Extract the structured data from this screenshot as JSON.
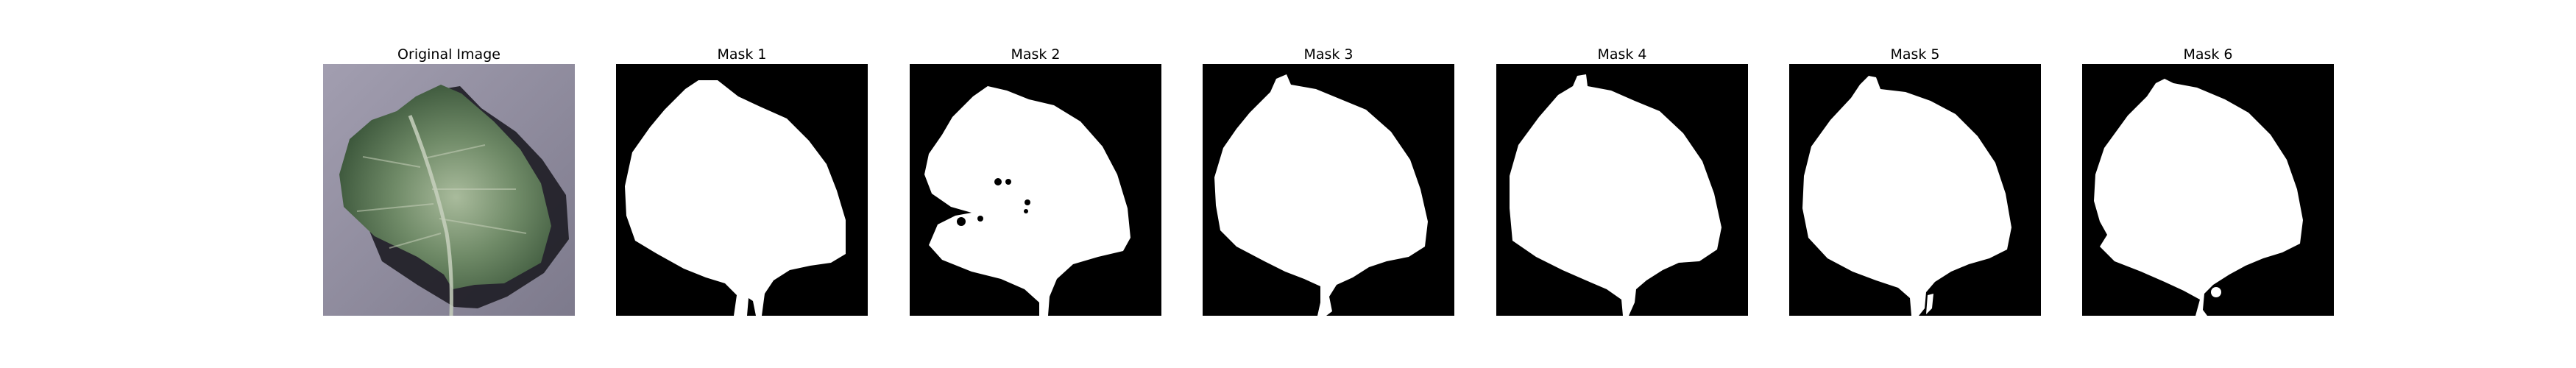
{
  "panels": [
    {
      "title": "Original Image"
    },
    {
      "title": "Mask 1"
    },
    {
      "title": "Mask 2"
    },
    {
      "title": "Mask 3"
    },
    {
      "title": "Mask 4"
    },
    {
      "title": "Mask 5"
    },
    {
      "title": "Mask 6"
    }
  ],
  "colors": {
    "mask_background": "#000000",
    "mask_foreground": "#ffffff",
    "photo_background": "#8e8a9c",
    "leaf_dark": "#3c5e3a",
    "leaf_light": "#9bb08f",
    "shadow": "#1d1c24"
  }
}
